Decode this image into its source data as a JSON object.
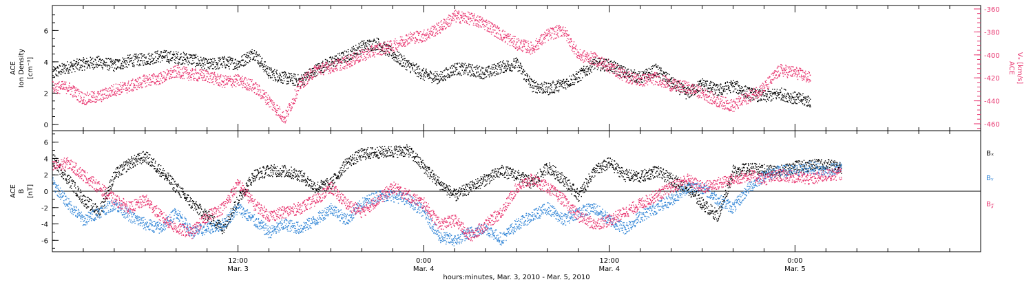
{
  "colors": {
    "black": "#000000",
    "pink": "#e8336e",
    "blue": "#2f84d6"
  },
  "chart_data": [
    {
      "type": "scatter",
      "panel": "top",
      "left_axis": {
        "label_line1": "ACE",
        "label_line2": "Ion Density",
        "units": "[cm⁻³]",
        "ylim": [
          -0.4,
          7.6
        ],
        "ticks": [
          "0",
          "2",
          "4",
          "6"
        ]
      },
      "right_axis": {
        "label_line1": "ACE",
        "label_line2": "Vₓ [km/s]",
        "ylim": [
          -466,
          -357
        ],
        "ticks": [
          "-360",
          "-380",
          "-400",
          "-420",
          "-440",
          "-460"
        ]
      },
      "xlim_hours": [
        0,
        60
      ],
      "series": [
        {
          "color": "black",
          "axis": "left",
          "points": [
            [
              0.0,
              3.3
            ],
            [
              1.0,
              3.7
            ],
            [
              2.0,
              3.9
            ],
            [
              3.0,
              4.0
            ],
            [
              4.0,
              3.8
            ],
            [
              5.0,
              4.1
            ],
            [
              6.0,
              4.2
            ],
            [
              7.0,
              4.4
            ],
            [
              8.0,
              4.3
            ],
            [
              9.0,
              4.2
            ],
            [
              10.0,
              3.8
            ],
            [
              11.0,
              4.0
            ],
            [
              12.0,
              3.9
            ],
            [
              13.0,
              4.6
            ],
            [
              14.0,
              3.3
            ],
            [
              15.0,
              3.0
            ],
            [
              16.0,
              2.8
            ],
            [
              17.0,
              3.5
            ],
            [
              18.0,
              4.0
            ],
            [
              19.0,
              4.4
            ],
            [
              20.0,
              5.0
            ],
            [
              21.0,
              5.2
            ],
            [
              22.0,
              4.5
            ],
            [
              23.0,
              3.8
            ],
            [
              24.0,
              3.2
            ],
            [
              25.0,
              3.0
            ],
            [
              26.0,
              3.6
            ],
            [
              27.0,
              3.5
            ],
            [
              28.0,
              3.3
            ],
            [
              29.0,
              3.7
            ],
            [
              30.0,
              3.9
            ],
            [
              31.0,
              2.5
            ],
            [
              32.0,
              2.3
            ],
            [
              33.0,
              2.6
            ],
            [
              34.0,
              3.1
            ],
            [
              35.0,
              3.9
            ],
            [
              36.0,
              3.8
            ],
            [
              37.0,
              3.3
            ],
            [
              38.0,
              3.0
            ],
            [
              39.0,
              3.5
            ],
            [
              40.0,
              2.7
            ],
            [
              41.0,
              2.0
            ],
            [
              42.0,
              2.6
            ],
            [
              43.0,
              2.2
            ],
            [
              44.0,
              2.5
            ],
            [
              45.0,
              2.0
            ],
            [
              46.0,
              1.8
            ],
            [
              47.0,
              2.0
            ],
            [
              48.0,
              1.7
            ],
            [
              49.0,
              1.5
            ]
          ]
        },
        {
          "color": "pink",
          "axis": "right",
          "points": [
            [
              0.0,
              -428
            ],
            [
              1.0,
              -428
            ],
            [
              2.0,
              -438
            ],
            [
              3.0,
              -436
            ],
            [
              4.0,
              -430
            ],
            [
              5.0,
              -427
            ],
            [
              6.0,
              -422
            ],
            [
              7.0,
              -420
            ],
            [
              8.0,
              -414
            ],
            [
              9.0,
              -417
            ],
            [
              10.0,
              -418
            ],
            [
              11.0,
              -423
            ],
            [
              12.0,
              -422
            ],
            [
              13.0,
              -427
            ],
            [
              14.0,
              -440
            ],
            [
              15.0,
              -455
            ],
            [
              16.0,
              -425
            ],
            [
              17.0,
              -413
            ],
            [
              18.0,
              -410
            ],
            [
              19.0,
              -406
            ],
            [
              20.0,
              -400
            ],
            [
              21.0,
              -395
            ],
            [
              22.0,
              -392
            ],
            [
              23.0,
              -385
            ],
            [
              24.0,
              -383
            ],
            [
              25.0,
              -376
            ],
            [
              26.0,
              -366
            ],
            [
              27.0,
              -368
            ],
            [
              28.0,
              -373
            ],
            [
              29.0,
              -382
            ],
            [
              30.0,
              -390
            ],
            [
              31.0,
              -394
            ],
            [
              32.0,
              -382
            ],
            [
              33.0,
              -378
            ],
            [
              34.0,
              -400
            ],
            [
              35.0,
              -403
            ],
            [
              36.0,
              -410
            ],
            [
              37.0,
              -418
            ],
            [
              38.0,
              -422
            ],
            [
              39.0,
              -420
            ],
            [
              40.0,
              -426
            ],
            [
              41.0,
              -428
            ],
            [
              42.0,
              -433
            ],
            [
              43.0,
              -440
            ],
            [
              44.0,
              -444
            ],
            [
              45.0,
              -436
            ],
            [
              46.0,
              -428
            ],
            [
              47.0,
              -413
            ],
            [
              48.0,
              -415
            ],
            [
              49.0,
              -420
            ]
          ]
        }
      ]
    },
    {
      "type": "scatter",
      "panel": "bottom",
      "left_axis": {
        "label_line1": "ACE",
        "label_line2": "B",
        "units": "[nT]",
        "ylim": [
          -7.4,
          7.4
        ],
        "ticks": [
          "-6",
          "-4",
          "-2",
          "0",
          "2",
          "4",
          "6"
        ]
      },
      "xlim_hours": [
        0,
        60
      ],
      "legend": [
        {
          "text": "Bₓ",
          "color": "black"
        },
        {
          "text": "Bᵧ",
          "color": "blue"
        },
        {
          "text": "B𝓏",
          "color": "pink"
        }
      ],
      "series": [
        {
          "color": "black",
          "points": [
            [
              0.0,
              4.0
            ],
            [
              1.0,
              1.5
            ],
            [
              2.0,
              -1.0
            ],
            [
              3.0,
              -2.5
            ],
            [
              4.0,
              2.0
            ],
            [
              5.0,
              3.5
            ],
            [
              6.0,
              4.3
            ],
            [
              7.0,
              2.5
            ],
            [
              8.0,
              0.5
            ],
            [
              9.0,
              -1.5
            ],
            [
              10.0,
              -3.0
            ],
            [
              11.0,
              -4.5
            ],
            [
              12.0,
              -1.0
            ],
            [
              13.0,
              2.0
            ],
            [
              14.0,
              2.6
            ],
            [
              15.0,
              2.5
            ],
            [
              16.0,
              2.0
            ],
            [
              17.0,
              0.5
            ],
            [
              18.0,
              1.0
            ],
            [
              19.0,
              3.5
            ],
            [
              20.0,
              4.6
            ],
            [
              21.0,
              4.8
            ],
            [
              22.0,
              4.9
            ],
            [
              23.0,
              5.0
            ],
            [
              24.0,
              3.0
            ],
            [
              25.0,
              1.0
            ],
            [
              26.0,
              -0.5
            ],
            [
              27.0,
              0.5
            ],
            [
              28.0,
              1.5
            ],
            [
              29.0,
              2.5
            ],
            [
              30.0,
              2.0
            ],
            [
              31.0,
              1.0
            ],
            [
              32.0,
              3.0
            ],
            [
              33.0,
              1.5
            ],
            [
              34.0,
              -0.5
            ],
            [
              35.0,
              2.5
            ],
            [
              36.0,
              3.5
            ],
            [
              37.0,
              2.0
            ],
            [
              38.0,
              1.8
            ],
            [
              39.0,
              2.5
            ],
            [
              40.0,
              1.5
            ],
            [
              41.0,
              0.5
            ],
            [
              42.0,
              -1.5
            ],
            [
              43.0,
              -3.0
            ],
            [
              44.0,
              2.5
            ],
            [
              45.0,
              2.8
            ],
            [
              46.0,
              2.6
            ],
            [
              47.0,
              2.5
            ],
            [
              48.0,
              3.0
            ],
            [
              49.0,
              3.2
            ],
            [
              50.0,
              3.3
            ],
            [
              51.0,
              2.8
            ]
          ]
        },
        {
          "color": "blue",
          "points": [
            [
              0.0,
              1.0
            ],
            [
              1.0,
              -1.5
            ],
            [
              2.0,
              -3.5
            ],
            [
              3.0,
              -2.5
            ],
            [
              4.0,
              -1.5
            ],
            [
              5.0,
              -3.0
            ],
            [
              6.0,
              -4.0
            ],
            [
              7.0,
              -4.5
            ],
            [
              8.0,
              -2.5
            ],
            [
              9.0,
              -5.0
            ],
            [
              10.0,
              -4.5
            ],
            [
              11.0,
              -4.0
            ],
            [
              12.0,
              -2.0
            ],
            [
              13.0,
              -3.5
            ],
            [
              14.0,
              -5.0
            ],
            [
              15.0,
              -4.0
            ],
            [
              16.0,
              -4.5
            ],
            [
              17.0,
              -3.5
            ],
            [
              18.0,
              -2.0
            ],
            [
              19.0,
              -3.5
            ],
            [
              20.0,
              -1.5
            ],
            [
              21.0,
              -0.5
            ],
            [
              22.0,
              -0.5
            ],
            [
              23.0,
              -1.0
            ],
            [
              24.0,
              -2.5
            ],
            [
              25.0,
              -5.5
            ],
            [
              26.0,
              -6.0
            ],
            [
              27.0,
              -5.0
            ],
            [
              28.0,
              -4.5
            ],
            [
              29.0,
              -5.8
            ],
            [
              30.0,
              -4.0
            ],
            [
              31.0,
              -3.0
            ],
            [
              32.0,
              -2.0
            ],
            [
              33.0,
              -3.5
            ],
            [
              34.0,
              -2.5
            ],
            [
              35.0,
              -2.0
            ],
            [
              36.0,
              -3.5
            ],
            [
              37.0,
              -4.5
            ],
            [
              38.0,
              -3.0
            ],
            [
              39.0,
              -2.0
            ],
            [
              40.0,
              -1.0
            ],
            [
              41.0,
              0.5
            ],
            [
              42.0,
              0.5
            ],
            [
              43.0,
              -1.0
            ],
            [
              44.0,
              -2.0
            ],
            [
              45.0,
              0.5
            ],
            [
              46.0,
              2.0
            ],
            [
              47.0,
              2.5
            ],
            [
              48.0,
              2.5
            ],
            [
              49.0,
              3.0
            ],
            [
              50.0,
              2.5
            ],
            [
              51.0,
              3.0
            ]
          ]
        },
        {
          "color": "pink",
          "points": [
            [
              0.0,
              3.0
            ],
            [
              1.0,
              3.5
            ],
            [
              2.0,
              2.0
            ],
            [
              3.0,
              0.5
            ],
            [
              4.0,
              -1.0
            ],
            [
              5.0,
              -2.0
            ],
            [
              6.0,
              -1.0
            ],
            [
              7.0,
              -3.0
            ],
            [
              8.0,
              -4.5
            ],
            [
              9.0,
              -5.0
            ],
            [
              10.0,
              -3.0
            ],
            [
              11.0,
              -2.0
            ],
            [
              12.0,
              1.0
            ],
            [
              13.0,
              -1.5
            ],
            [
              14.0,
              -3.0
            ],
            [
              15.0,
              -2.5
            ],
            [
              16.0,
              -2.0
            ],
            [
              17.0,
              -1.0
            ],
            [
              18.0,
              0.5
            ],
            [
              19.0,
              -1.5
            ],
            [
              20.0,
              -2.5
            ],
            [
              21.0,
              -1.0
            ],
            [
              22.0,
              0.5
            ],
            [
              23.0,
              -0.5
            ],
            [
              24.0,
              -1.5
            ],
            [
              25.0,
              -4.0
            ],
            [
              26.0,
              -3.5
            ],
            [
              27.0,
              -5.5
            ],
            [
              28.0,
              -4.0
            ],
            [
              29.0,
              -2.5
            ],
            [
              30.0,
              0.5
            ],
            [
              31.0,
              1.5
            ],
            [
              32.0,
              0.5
            ],
            [
              33.0,
              -1.0
            ],
            [
              34.0,
              -3.0
            ],
            [
              35.0,
              -4.0
            ],
            [
              36.0,
              -3.5
            ],
            [
              37.0,
              -2.5
            ],
            [
              38.0,
              -1.5
            ],
            [
              39.0,
              -0.5
            ],
            [
              40.0,
              0.5
            ],
            [
              41.0,
              1.5
            ],
            [
              42.0,
              0.5
            ],
            [
              43.0,
              1.0
            ],
            [
              44.0,
              1.5
            ],
            [
              45.0,
              2.0
            ],
            [
              46.0,
              1.5
            ],
            [
              47.0,
              2.0
            ],
            [
              48.0,
              1.8
            ],
            [
              49.0,
              1.5
            ],
            [
              50.0,
              2.0
            ],
            [
              51.0,
              2.2
            ]
          ]
        }
      ]
    }
  ],
  "x_axis": {
    "ticks": [
      {
        "h": 12,
        "time": "12:00",
        "date": "Mar. 3"
      },
      {
        "h": 24,
        "time": "0:00",
        "date": "Mar. 4"
      },
      {
        "h": 36,
        "time": "12:00",
        "date": "Mar. 4"
      },
      {
        "h": 48,
        "time": "0:00",
        "date": "Mar. 5"
      }
    ],
    "title": "hours:minutes, Mar. 3, 2010 - Mar. 5, 2010"
  }
}
